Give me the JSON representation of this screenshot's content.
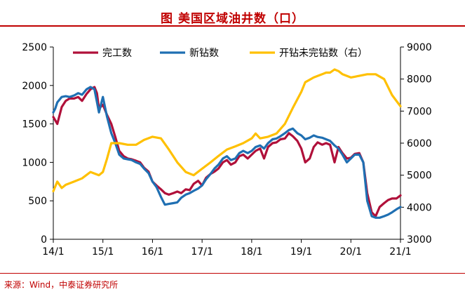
{
  "header": {
    "title": "图  美国区域油井数（口）"
  },
  "footer": {
    "source": "来源：Wind，中泰证券研究所"
  },
  "colors": {
    "completed": "#b0103a",
    "drilled": "#1f6fb2",
    "duc": "#ffc000",
    "accent": "#c00000"
  },
  "chart_data": {
    "type": "line",
    "title": "美国区域油井数（口）",
    "xlabel": "",
    "ylabel": "",
    "x_ticks": [
      "14/1",
      "15/1",
      "16/1",
      "17/1",
      "18/1",
      "19/1",
      "20/1",
      "21/1"
    ],
    "y_left": {
      "lim": [
        0,
        2500
      ],
      "ticks": [
        0,
        500,
        1000,
        1500,
        2000,
        2500
      ]
    },
    "y_right": {
      "lim": [
        3000,
        9000
      ],
      "ticks": [
        3000,
        4000,
        5000,
        6000,
        7000,
        8000,
        9000
      ]
    },
    "grid": false,
    "legend_position": "top",
    "series": [
      {
        "name": "完工数",
        "axis": "left",
        "colorKey": "completed",
        "points": [
          [
            2014.0,
            1590
          ],
          [
            2014.08,
            1500
          ],
          [
            2014.17,
            1720
          ],
          [
            2014.25,
            1800
          ],
          [
            2014.33,
            1830
          ],
          [
            2014.42,
            1830
          ],
          [
            2014.5,
            1850
          ],
          [
            2014.58,
            1800
          ],
          [
            2014.67,
            1890
          ],
          [
            2014.75,
            1950
          ],
          [
            2014.83,
            1980
          ],
          [
            2014.88,
            1900
          ],
          [
            2014.92,
            1700
          ],
          [
            2015.0,
            1750
          ],
          [
            2015.08,
            1620
          ],
          [
            2015.17,
            1500
          ],
          [
            2015.25,
            1330
          ],
          [
            2015.33,
            1150
          ],
          [
            2015.42,
            1080
          ],
          [
            2015.5,
            1050
          ],
          [
            2015.58,
            1040
          ],
          [
            2015.67,
            1020
          ],
          [
            2015.75,
            1000
          ],
          [
            2015.83,
            930
          ],
          [
            2015.92,
            880
          ],
          [
            2016.0,
            750
          ],
          [
            2016.08,
            700
          ],
          [
            2016.17,
            650
          ],
          [
            2016.25,
            600
          ],
          [
            2016.33,
            580
          ],
          [
            2016.42,
            600
          ],
          [
            2016.5,
            620
          ],
          [
            2016.58,
            600
          ],
          [
            2016.67,
            650
          ],
          [
            2016.75,
            640
          ],
          [
            2016.83,
            720
          ],
          [
            2016.92,
            760
          ],
          [
            2017.0,
            700
          ],
          [
            2017.08,
            800
          ],
          [
            2017.17,
            850
          ],
          [
            2017.25,
            880
          ],
          [
            2017.33,
            920
          ],
          [
            2017.42,
            1000
          ],
          [
            2017.5,
            1030
          ],
          [
            2017.58,
            970
          ],
          [
            2017.67,
            1000
          ],
          [
            2017.75,
            1080
          ],
          [
            2017.83,
            1100
          ],
          [
            2017.92,
            1050
          ],
          [
            2018.0,
            1100
          ],
          [
            2018.08,
            1150
          ],
          [
            2018.17,
            1180
          ],
          [
            2018.25,
            1050
          ],
          [
            2018.33,
            1200
          ],
          [
            2018.42,
            1250
          ],
          [
            2018.5,
            1260
          ],
          [
            2018.58,
            1300
          ],
          [
            2018.67,
            1310
          ],
          [
            2018.75,
            1380
          ],
          [
            2018.83,
            1340
          ],
          [
            2018.92,
            1280
          ],
          [
            2019.0,
            1180
          ],
          [
            2019.08,
            1000
          ],
          [
            2019.17,
            1050
          ],
          [
            2019.25,
            1200
          ],
          [
            2019.33,
            1260
          ],
          [
            2019.42,
            1230
          ],
          [
            2019.5,
            1250
          ],
          [
            2019.58,
            1230
          ],
          [
            2019.67,
            1000
          ],
          [
            2019.75,
            1200
          ],
          [
            2019.83,
            1120
          ],
          [
            2019.92,
            1050
          ],
          [
            2020.0,
            1060
          ],
          [
            2020.08,
            1110
          ],
          [
            2020.17,
            1120
          ],
          [
            2020.25,
            1000
          ],
          [
            2020.33,
            600
          ],
          [
            2020.42,
            350
          ],
          [
            2020.5,
            300
          ],
          [
            2020.58,
            420
          ],
          [
            2020.67,
            470
          ],
          [
            2020.75,
            510
          ],
          [
            2020.83,
            530
          ],
          [
            2020.92,
            530
          ],
          [
            2021.0,
            570
          ]
        ]
      },
      {
        "name": "新钻数",
        "axis": "left",
        "colorKey": "drilled",
        "points": [
          [
            2014.0,
            1650
          ],
          [
            2014.04,
            1700
          ],
          [
            2014.08,
            1780
          ],
          [
            2014.17,
            1850
          ],
          [
            2014.25,
            1860
          ],
          [
            2014.33,
            1850
          ],
          [
            2014.42,
            1870
          ],
          [
            2014.5,
            1900
          ],
          [
            2014.58,
            1880
          ],
          [
            2014.67,
            1950
          ],
          [
            2014.75,
            1980
          ],
          [
            2014.83,
            1950
          ],
          [
            2014.92,
            1650
          ],
          [
            2015.0,
            1850
          ],
          [
            2015.08,
            1600
          ],
          [
            2015.17,
            1380
          ],
          [
            2015.25,
            1250
          ],
          [
            2015.33,
            1100
          ],
          [
            2015.42,
            1050
          ],
          [
            2015.5,
            1040
          ],
          [
            2015.58,
            1030
          ],
          [
            2015.67,
            1000
          ],
          [
            2015.75,
            980
          ],
          [
            2015.83,
            920
          ],
          [
            2015.92,
            860
          ],
          [
            2016.0,
            750
          ],
          [
            2016.08,
            680
          ],
          [
            2016.17,
            550
          ],
          [
            2016.25,
            450
          ],
          [
            2016.33,
            460
          ],
          [
            2016.42,
            470
          ],
          [
            2016.5,
            480
          ],
          [
            2016.58,
            540
          ],
          [
            2016.67,
            580
          ],
          [
            2016.75,
            600
          ],
          [
            2016.83,
            630
          ],
          [
            2016.92,
            660
          ],
          [
            2017.0,
            700
          ],
          [
            2017.08,
            780
          ],
          [
            2017.17,
            850
          ],
          [
            2017.25,
            920
          ],
          [
            2017.33,
            970
          ],
          [
            2017.42,
            1050
          ],
          [
            2017.5,
            1080
          ],
          [
            2017.58,
            1030
          ],
          [
            2017.67,
            1050
          ],
          [
            2017.75,
            1120
          ],
          [
            2017.83,
            1150
          ],
          [
            2017.92,
            1120
          ],
          [
            2018.0,
            1150
          ],
          [
            2018.08,
            1200
          ],
          [
            2018.17,
            1220
          ],
          [
            2018.25,
            1180
          ],
          [
            2018.33,
            1250
          ],
          [
            2018.42,
            1300
          ],
          [
            2018.5,
            1310
          ],
          [
            2018.58,
            1340
          ],
          [
            2018.67,
            1380
          ],
          [
            2018.75,
            1420
          ],
          [
            2018.83,
            1440
          ],
          [
            2018.92,
            1380
          ],
          [
            2019.0,
            1350
          ],
          [
            2019.08,
            1300
          ],
          [
            2019.17,
            1320
          ],
          [
            2019.25,
            1350
          ],
          [
            2019.33,
            1330
          ],
          [
            2019.42,
            1320
          ],
          [
            2019.5,
            1300
          ],
          [
            2019.58,
            1280
          ],
          [
            2019.67,
            1220
          ],
          [
            2019.75,
            1180
          ],
          [
            2019.83,
            1100
          ],
          [
            2019.92,
            1000
          ],
          [
            2020.0,
            1050
          ],
          [
            2020.08,
            1100
          ],
          [
            2020.17,
            1100
          ],
          [
            2020.25,
            1000
          ],
          [
            2020.33,
            500
          ],
          [
            2020.42,
            300
          ],
          [
            2020.5,
            280
          ],
          [
            2020.58,
            280
          ],
          [
            2020.67,
            300
          ],
          [
            2020.75,
            320
          ],
          [
            2020.83,
            350
          ],
          [
            2020.92,
            390
          ],
          [
            2021.0,
            420
          ]
        ]
      },
      {
        "name": "开钻未完钻数（右）",
        "axis": "right",
        "colorKey": "duc",
        "points": [
          [
            2014.0,
            4500
          ],
          [
            2014.08,
            4800
          ],
          [
            2014.17,
            4600
          ],
          [
            2014.25,
            4700
          ],
          [
            2014.42,
            4800
          ],
          [
            2014.58,
            4900
          ],
          [
            2014.75,
            5100
          ],
          [
            2014.92,
            5000
          ],
          [
            2015.0,
            5100
          ],
          [
            2015.08,
            5500
          ],
          [
            2015.17,
            6000
          ],
          [
            2015.33,
            6000
          ],
          [
            2015.5,
            5950
          ],
          [
            2015.67,
            5950
          ],
          [
            2015.83,
            6100
          ],
          [
            2016.0,
            6200
          ],
          [
            2016.17,
            6150
          ],
          [
            2016.33,
            5800
          ],
          [
            2016.5,
            5400
          ],
          [
            2016.67,
            5100
          ],
          [
            2016.83,
            5000
          ],
          [
            2017.0,
            5200
          ],
          [
            2017.17,
            5400
          ],
          [
            2017.33,
            5600
          ],
          [
            2017.5,
            5800
          ],
          [
            2017.67,
            5900
          ],
          [
            2017.83,
            6000
          ],
          [
            2018.0,
            6150
          ],
          [
            2018.08,
            6300
          ],
          [
            2018.17,
            6150
          ],
          [
            2018.33,
            6200
          ],
          [
            2018.5,
            6300
          ],
          [
            2018.67,
            6600
          ],
          [
            2018.83,
            7100
          ],
          [
            2019.0,
            7600
          ],
          [
            2019.08,
            7900
          ],
          [
            2019.25,
            8050
          ],
          [
            2019.42,
            8150
          ],
          [
            2019.5,
            8200
          ],
          [
            2019.58,
            8200
          ],
          [
            2019.67,
            8300
          ],
          [
            2019.75,
            8250
          ],
          [
            2019.83,
            8150
          ],
          [
            2020.0,
            8050
          ],
          [
            2020.17,
            8100
          ],
          [
            2020.33,
            8150
          ],
          [
            2020.5,
            8150
          ],
          [
            2020.67,
            8000
          ],
          [
            2020.83,
            7500
          ],
          [
            2021.0,
            7150
          ]
        ]
      }
    ]
  }
}
